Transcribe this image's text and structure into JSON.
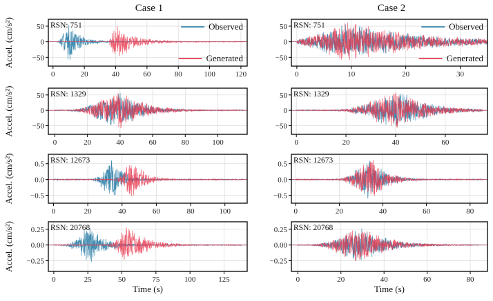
{
  "colors": {
    "observed": "#3a87ad",
    "generated": "#e8384f",
    "grid": "#d9d9d9",
    "axis": "#000000"
  },
  "figure": {
    "column_titles": [
      "Case 1",
      "Case 2"
    ],
    "ylabel": "Accel. (cm/s²)",
    "xlabel": "Time (s)"
  },
  "chart_data": [
    {
      "type": "line",
      "column_title": "Case 1",
      "annotation": "RSN: 751",
      "ylabel": "Accel. (cm/s²)",
      "xlabel": "",
      "xlim": [
        -3,
        124
      ],
      "ylim": [
        -78,
        72
      ],
      "xticks": [
        0,
        20,
        40,
        60,
        80,
        100,
        120
      ],
      "yticks": [
        -50,
        0,
        50
      ],
      "legend": {
        "entries": [
          "Observed",
          "Generated"
        ],
        "placement": "split-right"
      },
      "series": [
        {
          "name": "Observed",
          "color": "#3a87ad",
          "signal": {
            "start": 3,
            "end": 50,
            "peak_time": 10,
            "peak_amp": 65,
            "rise": 3,
            "decay": 8
          }
        },
        {
          "name": "Generated",
          "color": "#e8384f",
          "signal": {
            "start": 36,
            "end": 122,
            "peak_time": 40,
            "peak_amp": 66,
            "rise": 2,
            "decay": 12
          }
        }
      ]
    },
    {
      "type": "line",
      "column_title": "Case 2",
      "annotation": "RSN: 751",
      "ylabel": "",
      "xlabel": "",
      "xlim": [
        -1,
        35
      ],
      "ylim": [
        -78,
        72
      ],
      "xticks": [
        0,
        10,
        20,
        30
      ],
      "yticks": [
        -50,
        0,
        50
      ],
      "legend": {
        "entries": [
          "Observed",
          "Generated"
        ],
        "placement": "split-right"
      },
      "series": [
        {
          "name": "Observed",
          "color": "#3a87ad",
          "signal": {
            "start": 0,
            "end": 35,
            "peak_time": 10,
            "peak_amp": 62,
            "rise": 5,
            "decay": 14
          }
        },
        {
          "name": "Generated",
          "color": "#e8384f",
          "signal": {
            "start": 0,
            "end": 35,
            "peak_time": 10,
            "peak_amp": 66,
            "rise": 5,
            "decay": 14
          }
        }
      ]
    },
    {
      "type": "line",
      "column_title": "Case 1",
      "annotation": "RSN: 1329",
      "ylabel": "Accel. (cm/s²)",
      "xlabel": "",
      "xlim": [
        -4,
        118
      ],
      "ylim": [
        -78,
        72
      ],
      "xticks": [
        0,
        20,
        40,
        60,
        80,
        100
      ],
      "yticks": [
        -50,
        0,
        50
      ],
      "series": [
        {
          "name": "Observed",
          "color": "#3a87ad",
          "signal": {
            "start": 0,
            "end": 116,
            "peak_time": 40,
            "peak_amp": 66,
            "rise": 12,
            "decay": 14
          }
        },
        {
          "name": "Generated",
          "color": "#e8384f",
          "signal": {
            "start": 0,
            "end": 116,
            "peak_time": 41,
            "peak_amp": 68,
            "rise": 12,
            "decay": 15
          }
        }
      ]
    },
    {
      "type": "line",
      "column_title": "Case 2",
      "annotation": "RSN: 1329",
      "ylabel": "",
      "xlabel": "",
      "xlim": [
        -2,
        77
      ],
      "ylim": [
        -78,
        72
      ],
      "xticks": [
        0,
        20,
        40,
        60
      ],
      "yticks": [
        -50,
        0,
        50
      ],
      "series": [
        {
          "name": "Observed",
          "color": "#3a87ad",
          "signal": {
            "start": 0,
            "end": 75,
            "peak_time": 42,
            "peak_amp": 66,
            "rise": 10,
            "decay": 12
          }
        },
        {
          "name": "Generated",
          "color": "#e8384f",
          "signal": {
            "start": 0,
            "end": 75,
            "peak_time": 42,
            "peak_amp": 68,
            "rise": 10,
            "decay": 12
          }
        }
      ]
    },
    {
      "type": "line",
      "column_title": "Case 1",
      "annotation": "RSN: 12673",
      "ylabel": "Accel. (cm/s²)",
      "xlabel": "",
      "xlim": [
        -3,
        113
      ],
      "ylim": [
        -0.75,
        0.8
      ],
      "xticks": [
        0,
        20,
        40,
        60,
        80,
        100
      ],
      "yticks": [
        -0.5,
        0.0,
        0.5
      ],
      "series": [
        {
          "name": "Observed",
          "color": "#3a87ad",
          "signal": {
            "start": 0,
            "end": 111,
            "peak_time": 35,
            "peak_amp": 0.7,
            "rise": 5,
            "decay": 6
          }
        },
        {
          "name": "Generated",
          "color": "#e8384f",
          "signal": {
            "start": 0,
            "end": 111,
            "peak_time": 46,
            "peak_amp": 0.72,
            "rise": 4,
            "decay": 7
          }
        }
      ]
    },
    {
      "type": "line",
      "column_title": "Case 2",
      "annotation": "RSN: 12673",
      "ylabel": "",
      "xlabel": "",
      "xlim": [
        -2,
        88
      ],
      "ylim": [
        -0.75,
        0.8
      ],
      "xticks": [
        0,
        20,
        40,
        60,
        80
      ],
      "yticks": [
        -0.5,
        0.0,
        0.5
      ],
      "series": [
        {
          "name": "Observed",
          "color": "#3a87ad",
          "signal": {
            "start": 0,
            "end": 86,
            "peak_time": 35,
            "peak_amp": 0.72,
            "rise": 6,
            "decay": 7
          }
        },
        {
          "name": "Generated",
          "color": "#e8384f",
          "signal": {
            "start": 0,
            "end": 86,
            "peak_time": 35,
            "peak_amp": 0.74,
            "rise": 6,
            "decay": 7
          }
        }
      ]
    },
    {
      "type": "line",
      "column_title": "Case 1",
      "annotation": "RSN: 20768",
      "ylabel": "Accel. (cm/s²)",
      "xlabel": "Time (s)",
      "xlim": [
        -4,
        142
      ],
      "ylim": [
        -0.42,
        0.37
      ],
      "xticks": [
        0,
        25,
        50,
        75,
        100,
        125
      ],
      "yticks": [
        -0.25,
        0.0,
        0.25
      ],
      "series": [
        {
          "name": "Observed",
          "color": "#3a87ad",
          "signal": {
            "start": 0,
            "end": 138,
            "peak_time": 27,
            "peak_amp": 0.3,
            "rise": 8,
            "decay": 11
          }
        },
        {
          "name": "Generated",
          "color": "#e8384f",
          "signal": {
            "start": 0,
            "end": 138,
            "peak_time": 55,
            "peak_amp": 0.33,
            "rise": 6,
            "decay": 14
          }
        }
      ]
    },
    {
      "type": "line",
      "column_title": "Case 2",
      "annotation": "RSN: 20768",
      "ylabel": "",
      "xlabel": "Time (s)",
      "xlim": [
        -3,
        88
      ],
      "ylim": [
        -0.42,
        0.37
      ],
      "xticks": [
        0,
        20,
        40,
        60,
        80
      ],
      "yticks": [
        -0.25,
        0.0,
        0.25
      ],
      "series": [
        {
          "name": "Observed",
          "color": "#3a87ad",
          "signal": {
            "start": 0,
            "end": 84,
            "peak_time": 30,
            "peak_amp": 0.3,
            "rise": 9,
            "decay": 12
          }
        },
        {
          "name": "Generated",
          "color": "#e8384f",
          "signal": {
            "start": 0,
            "end": 84,
            "peak_time": 30,
            "peak_amp": 0.33,
            "rise": 9,
            "decay": 12
          }
        }
      ]
    }
  ]
}
